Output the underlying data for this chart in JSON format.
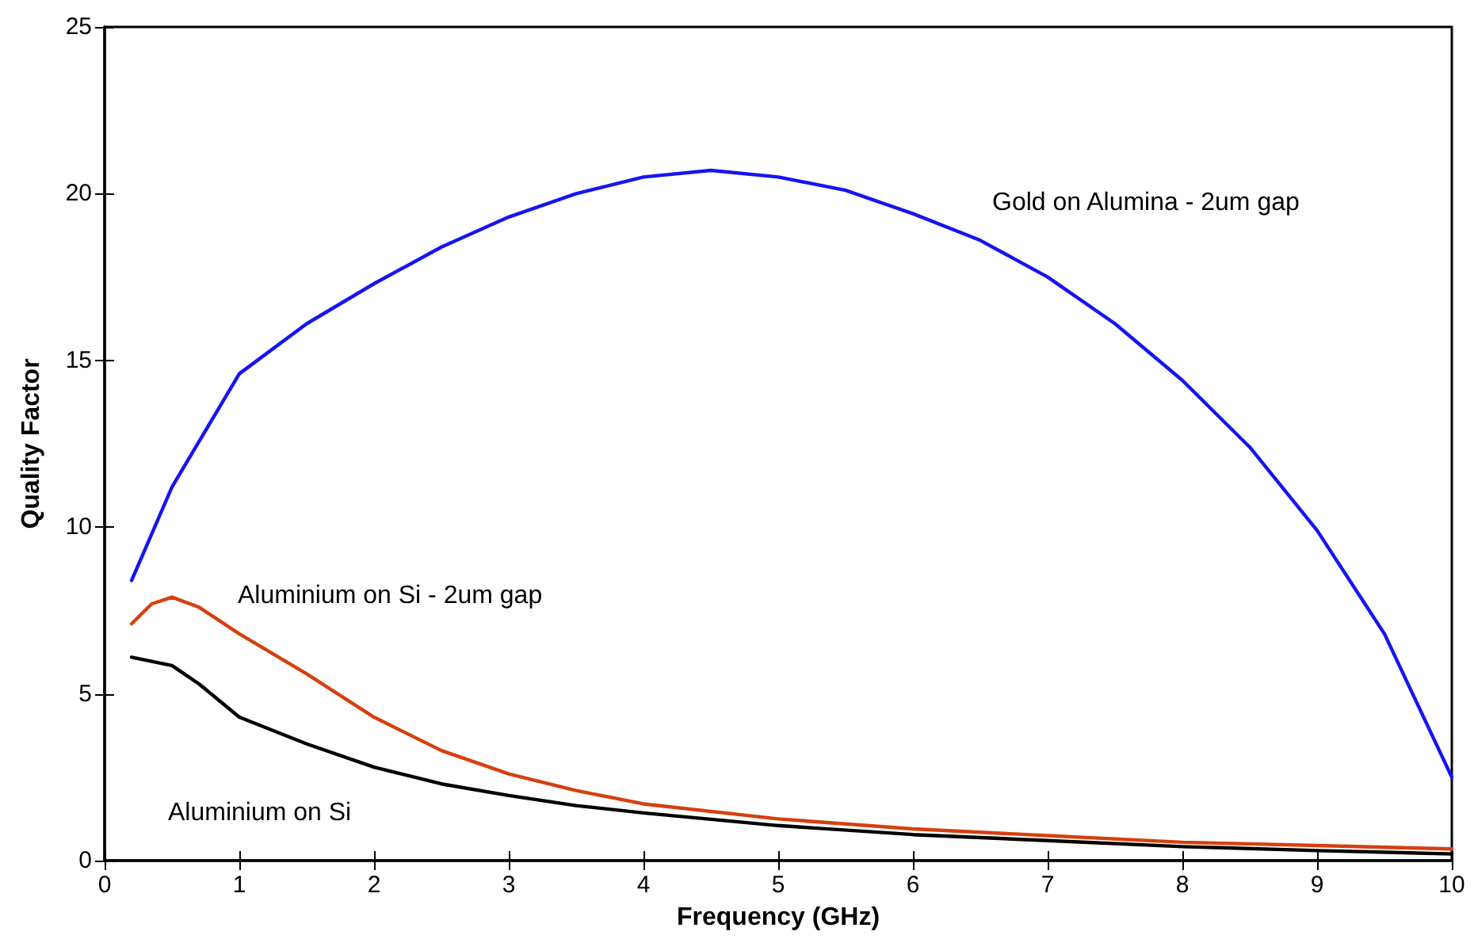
{
  "chart_data": {
    "type": "line",
    "xlabel": "Frequency (GHz)",
    "ylabel": "Quality Factor",
    "xlim": [
      0,
      10
    ],
    "xticks": [
      0,
      1,
      2,
      3,
      4,
      5,
      6,
      7,
      8,
      9,
      10
    ],
    "ylim": [
      0,
      25
    ],
    "yticks": [
      0,
      5,
      10,
      15,
      20,
      25
    ],
    "grid": false,
    "legend": false,
    "marker": "none",
    "line_style": "solid",
    "series": [
      {
        "name": "Gold on Alumina - 2um gap",
        "color": "#1515f0",
        "x": [
          0.2,
          0.5,
          1,
          1.5,
          2,
          2.5,
          3,
          3.5,
          4,
          4.5,
          5,
          5.5,
          6,
          6.5,
          7,
          7.5,
          8,
          8.5,
          9,
          9.5,
          10
        ],
        "values": [
          8.4,
          11.2,
          14.6,
          16.1,
          17.3,
          18.4,
          19.3,
          20.0,
          20.5,
          20.7,
          20.5,
          20.1,
          19.4,
          18.6,
          17.5,
          16.1,
          14.4,
          12.4,
          9.9,
          6.8,
          2.5
        ]
      },
      {
        "name": "Aluminium on Si - 2um gap",
        "color": "#d5400f",
        "x": [
          0.2,
          0.35,
          0.5,
          0.7,
          1,
          1.5,
          2,
          2.5,
          3,
          3.5,
          4,
          5,
          6,
          7,
          8,
          9,
          10
        ],
        "values": [
          7.1,
          7.7,
          7.9,
          7.6,
          6.8,
          5.6,
          4.3,
          3.3,
          2.6,
          2.1,
          1.7,
          1.25,
          0.95,
          0.75,
          0.55,
          0.45,
          0.35
        ]
      },
      {
        "name": "Aluminium on Si",
        "color": "#000000",
        "x": [
          0.2,
          0.5,
          0.7,
          1,
          1.5,
          2,
          2.5,
          3,
          3.5,
          4,
          5,
          6,
          7,
          8,
          9,
          10
        ],
        "values": [
          6.1,
          5.85,
          5.3,
          4.3,
          3.5,
          2.8,
          2.3,
          1.95,
          1.65,
          1.43,
          1.05,
          0.78,
          0.6,
          0.42,
          0.3,
          0.2
        ]
      }
    ]
  }
}
